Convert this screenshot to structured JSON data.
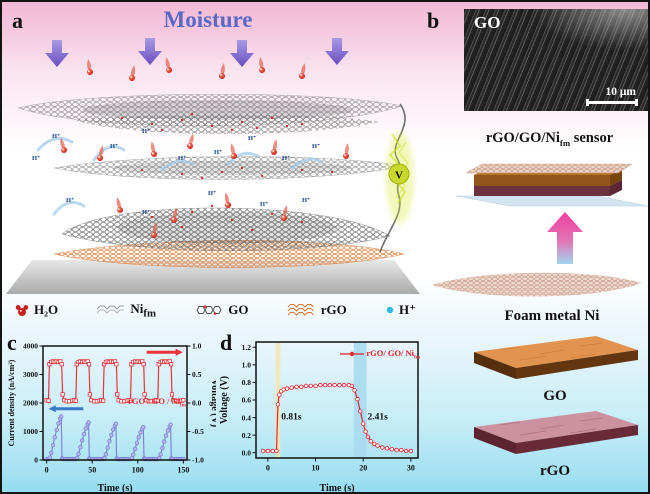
{
  "panel_a": {
    "label": "a",
    "title": "Moisture",
    "hplus": "H⁺",
    "voltmeter": "V",
    "legend": [
      {
        "label": "H₂O"
      },
      {
        "base": "Ni",
        "sub": "fm"
      },
      {
        "label": "GO"
      },
      {
        "label": "rGO"
      },
      {
        "label": "H⁺"
      }
    ]
  },
  "panel_b": {
    "label": "b",
    "sem": {
      "material_label": "GO",
      "scale_bar": "10 μm"
    },
    "sensor_caption": {
      "prefix": "rGO/GO/Ni",
      "sub": "fm",
      "suffix": " sensor"
    },
    "foam_label": "Foam metal Ni",
    "go_label": "GO",
    "rgo_label": "rGO"
  },
  "panel_c": {
    "label": "c"
  },
  "panel_d": {
    "label": "d"
  },
  "colors": {
    "moisture_title": "#5b68c6",
    "voltage_red": "#e8333a",
    "current_blue": "#7d83d6",
    "response_red": "#e8242c",
    "rise_band_yellow": "#f3e5b5",
    "fall_band_blue": "#a9daef"
  },
  "chart_data": [
    {
      "panel": "c",
      "type": "line",
      "xlabel": "Time (s)",
      "ylabel_left": "Current density (nA/cm²)",
      "ylabel_right": "Voltage (V)",
      "xlim": [
        -4,
        154
      ],
      "xticks": [
        0,
        50,
        100,
        150
      ],
      "ylim_left": [
        0,
        4000
      ],
      "yticks_left": [
        0,
        1000,
        2000,
        3000,
        4000
      ],
      "ylim_right": [
        -1,
        1
      ],
      "yticks_right": [
        -1,
        -0.5,
        0,
        0.5,
        1
      ],
      "yticks_right_decimals": 1,
      "series": [
        {
          "name": "voltage",
          "axis": "right",
          "color": "#e8333a",
          "marker": "square",
          "marker_fill": "#ffffff",
          "x": [
            0,
            2,
            3,
            5,
            7,
            9,
            11,
            13,
            15,
            16.5,
            17.5,
            19,
            22,
            25,
            28,
            30,
            32,
            33,
            35,
            37,
            39,
            41,
            43,
            45,
            46.5,
            47.5,
            49,
            52,
            55,
            58,
            60,
            62,
            63,
            65,
            67,
            69,
            71,
            73,
            75,
            76.5,
            77.5,
            79,
            82,
            85,
            88,
            90,
            92,
            93,
            95,
            97,
            99,
            101,
            103,
            105,
            106.5,
            107.5,
            109,
            112,
            115,
            118,
            120,
            122,
            123,
            125,
            127,
            129,
            131,
            133,
            135,
            136.5,
            137.5,
            139,
            142,
            145,
            148,
            150
          ],
          "y": [
            0.05,
            0.04,
            0.68,
            0.72,
            0.73,
            0.72,
            0.73,
            0.72,
            0.73,
            0.68,
            0.15,
            0.05,
            0.03,
            0.03,
            0.04,
            0.05,
            0.04,
            0.68,
            0.72,
            0.73,
            0.72,
            0.73,
            0.72,
            0.73,
            0.68,
            0.15,
            0.05,
            0.03,
            0.03,
            0.04,
            0.05,
            0.04,
            0.68,
            0.72,
            0.73,
            0.72,
            0.73,
            0.72,
            0.73,
            0.68,
            0.15,
            0.05,
            0.03,
            0.03,
            0.04,
            0.05,
            0.04,
            0.68,
            0.72,
            0.73,
            0.72,
            0.73,
            0.72,
            0.73,
            0.68,
            0.15,
            0.05,
            0.03,
            0.03,
            0.04,
            0.05,
            0.04,
            0.68,
            0.72,
            0.73,
            0.72,
            0.73,
            0.72,
            0.73,
            0.68,
            0.15,
            0.05,
            0.03,
            0.03,
            0.04,
            0.05
          ]
        },
        {
          "name": "current_density",
          "axis": "left",
          "color": "#7d83d6",
          "marker": "circle",
          "marker_fill": "#b6baee",
          "x": [
            0,
            2,
            3.5,
            5,
            7,
            9,
            11,
            13,
            15,
            16,
            16.8,
            18,
            20,
            22,
            24,
            26,
            28,
            30,
            32,
            33.5,
            35,
            37,
            39,
            41,
            43,
            45,
            46,
            46.8,
            48,
            50,
            52,
            54,
            56,
            58,
            60,
            62,
            63.5,
            65,
            67,
            69,
            71,
            73,
            75,
            76,
            76.8,
            78,
            80,
            82,
            84,
            86,
            88,
            90,
            92,
            93.5,
            95,
            97,
            99,
            101,
            103,
            105,
            106,
            106.8,
            108,
            110,
            112,
            114,
            116,
            118,
            120,
            122,
            123.5,
            125,
            127,
            129,
            131,
            133,
            135,
            136,
            136.8,
            138,
            140,
            142,
            144,
            146,
            148,
            150
          ],
          "y": [
            30,
            30,
            80,
            245,
            520,
            795,
            1055,
            1285,
            1455,
            1530,
            60,
            30,
            30,
            30,
            30,
            30,
            30,
            30,
            30,
            70,
            210,
            450,
            685,
            910,
            1110,
            1255,
            1320,
            55,
            30,
            30,
            30,
            30,
            30,
            30,
            30,
            30,
            65,
            205,
            430,
            660,
            875,
            1065,
            1205,
            1270,
            55,
            30,
            30,
            30,
            30,
            30,
            30,
            30,
            30,
            60,
            185,
            390,
            600,
            795,
            965,
            1090,
            1150,
            50,
            30,
            30,
            30,
            30,
            30,
            30,
            30,
            30,
            65,
            200,
            420,
            645,
            855,
            1040,
            1180,
            1240,
            55,
            30,
            30,
            30,
            30,
            30,
            30,
            30
          ]
        }
      ],
      "annotation": {
        "prefix": "rGO / GO / Ni",
        "sub": "fm",
        "color": "#e8333a"
      },
      "axis_arrows": [
        {
          "dir": "right",
          "color": "#e8333a",
          "fx0": 0.72,
          "fx1": 0.97,
          "fy": 0.055
        },
        {
          "dir": "left",
          "color": "#3c78c8",
          "fx0": 0.04,
          "fx1": 0.28,
          "fy": 0.55
        }
      ]
    },
    {
      "panel": "d",
      "type": "line",
      "xlabel": "Time (s)",
      "ylabel_left": "Voltage (V)",
      "xlim": [
        -2.5,
        31.5
      ],
      "xticks": [
        0,
        10,
        20,
        30
      ],
      "ylim_left": [
        -0.06,
        1.26
      ],
      "yticks_left": [
        0,
        0.2,
        0.4,
        0.6,
        0.8,
        1,
        1.2
      ],
      "yticks_left_decimals": 1,
      "bands": [
        {
          "x0": 1.6,
          "x1": 2.6,
          "color": "#f3e5b5",
          "opacity": 0.9,
          "meaning": "rise time region"
        },
        {
          "x0": 18.0,
          "x1": 20.7,
          "color": "#a9daef",
          "opacity": 0.9,
          "meaning": "fall time region"
        }
      ],
      "series": [
        {
          "name": "voltage",
          "axis": "left",
          "color": "#e8242c",
          "marker": "circle",
          "marker_fill": "#ffffff",
          "x": [
            -1,
            0,
            1,
            1.8,
            2.1,
            2.4,
            2.8,
            3.3,
            4,
            5,
            6,
            7,
            8,
            9,
            10,
            11,
            12,
            13,
            14,
            15,
            16,
            17,
            17.6,
            18.2,
            18.8,
            19.4,
            20,
            20.5,
            21,
            21.6,
            22.3,
            23,
            24,
            25,
            26,
            27,
            28,
            29,
            30
          ],
          "y": [
            0.02,
            0.02,
            0.02,
            0.02,
            0.55,
            0.66,
            0.7,
            0.72,
            0.73,
            0.74,
            0.75,
            0.75,
            0.76,
            0.76,
            0.76,
            0.77,
            0.77,
            0.77,
            0.77,
            0.77,
            0.77,
            0.77,
            0.76,
            0.71,
            0.61,
            0.47,
            0.33,
            0.24,
            0.18,
            0.13,
            0.1,
            0.08,
            0.06,
            0.05,
            0.04,
            0.03,
            0.03,
            0.02,
            0.02
          ]
        }
      ],
      "annotations": [
        {
          "text": "0.81s",
          "x": 2.8,
          "y": 0.38
        },
        {
          "text": "2.41s",
          "x": 20.9,
          "y": 0.38
        }
      ],
      "legend": {
        "prefix": "rGO/ GO/ Ni",
        "sub": "fm",
        "color": "#e8242c"
      }
    }
  ]
}
